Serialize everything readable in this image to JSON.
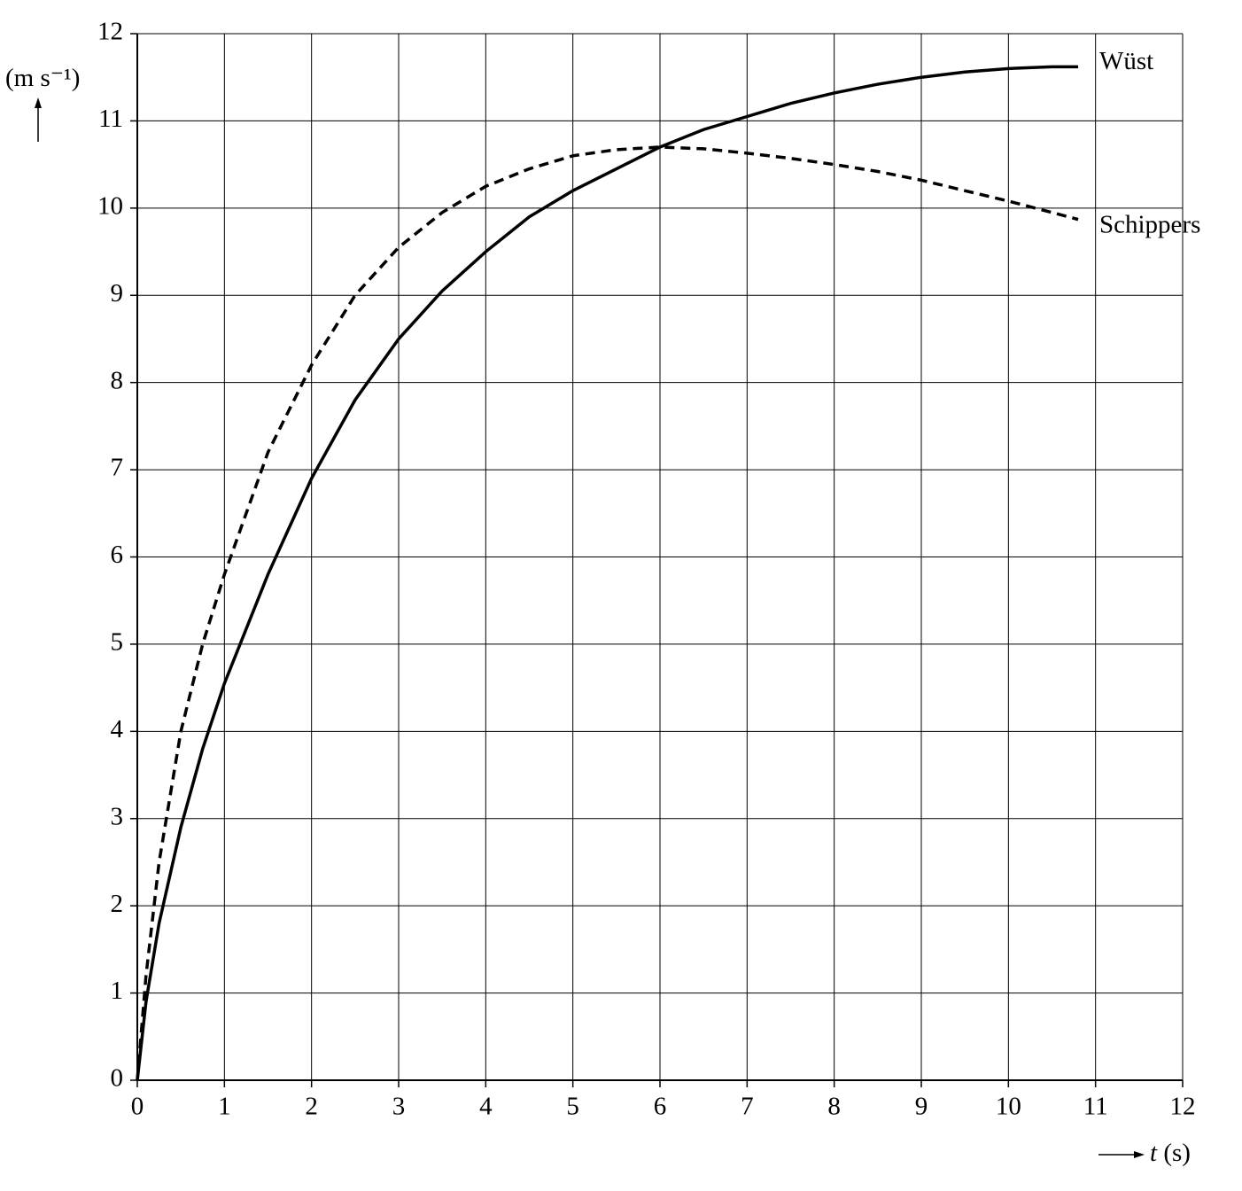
{
  "chart_data": {
    "type": "line",
    "xlabel": "t (s)",
    "ylabel": "(m s⁻¹)",
    "x": [
      0,
      0.1,
      0.25,
      0.5,
      0.75,
      1,
      1.5,
      2,
      2.5,
      3,
      3.5,
      4,
      4.5,
      5,
      5.5,
      6,
      6.5,
      7,
      7.5,
      8,
      8.5,
      9,
      9.5,
      10,
      10.5,
      10.8
    ],
    "series": [
      {
        "name": "Wüst",
        "color": "#000000",
        "style": "solid",
        "values": [
          0,
          0.9,
          1.8,
          2.9,
          3.8,
          4.55,
          5.8,
          6.9,
          7.8,
          8.5,
          9.05,
          9.5,
          9.9,
          10.2,
          10.45,
          10.7,
          10.9,
          11.05,
          11.2,
          11.32,
          11.42,
          11.5,
          11.56,
          11.6,
          11.62,
          11.62
        ]
      },
      {
        "name": "Schippers",
        "color": "#000000",
        "style": "dashed",
        "values": [
          0,
          1.2,
          2.5,
          4.0,
          5.0,
          5.8,
          7.2,
          8.2,
          9.0,
          9.55,
          9.95,
          10.25,
          10.45,
          10.6,
          10.67,
          10.7,
          10.68,
          10.63,
          10.57,
          10.5,
          10.42,
          10.32,
          10.2,
          10.08,
          9.95,
          9.87
        ]
      }
    ],
    "xlim": [
      0,
      12
    ],
    "ylim": [
      0,
      12
    ],
    "xticks": [
      0,
      1,
      2,
      3,
      4,
      5,
      6,
      7,
      8,
      9,
      10,
      11,
      12
    ],
    "yticks": [
      0,
      1,
      2,
      3,
      4,
      5,
      6,
      7,
      8,
      9,
      10,
      11,
      12
    ],
    "grid": true
  }
}
